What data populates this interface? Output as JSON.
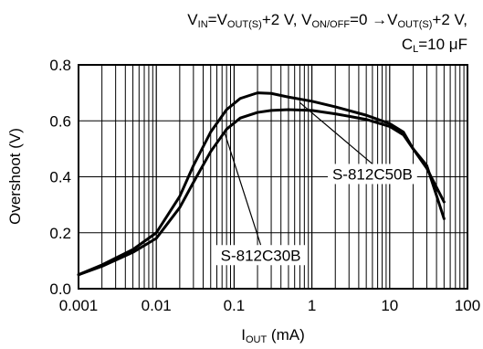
{
  "chart_data": {
    "type": "line",
    "title": "",
    "subtitle_line1": {
      "v_in": "V",
      "v_in_sub": "IN",
      "eq1": "=V",
      "vout1_sub": "OUT(S)",
      "plus1": "+2 V, V",
      "onoff_sub": "ON/OFF",
      "eq2": "=0 →V",
      "vout2_sub": "OUT(S)",
      "plus2": "+2 V,"
    },
    "subtitle_line2": {
      "c": "C",
      "c_sub": "L",
      "rest": "=10 μF"
    },
    "xlabel": {
      "i": "I",
      "i_sub": "OUT",
      "unit": " (mA)"
    },
    "ylabel": "Overshoot (V)",
    "x_scale": "log",
    "xlim": [
      0.001,
      100
    ],
    "ylim": [
      0.0,
      0.8
    ],
    "x_ticks": [
      0.001,
      0.01,
      0.1,
      1,
      10,
      100
    ],
    "x_tick_labels": [
      "0.001",
      "0.01",
      "0.1",
      "1",
      "10",
      "100"
    ],
    "y_ticks": [
      0.0,
      0.2,
      0.4,
      0.6,
      0.8
    ],
    "y_tick_labels": [
      "0.0",
      "0.2",
      "0.4",
      "0.6",
      "0.8"
    ],
    "grid": true,
    "legend": "none",
    "series": [
      {
        "name": "S-812C50B",
        "points": [
          [
            0.001,
            0.05
          ],
          [
            0.002,
            0.085
          ],
          [
            0.005,
            0.14
          ],
          [
            0.01,
            0.2
          ],
          [
            0.02,
            0.33
          ],
          [
            0.03,
            0.44
          ],
          [
            0.05,
            0.56
          ],
          [
            0.08,
            0.64
          ],
          [
            0.12,
            0.68
          ],
          [
            0.2,
            0.7
          ],
          [
            0.3,
            0.698
          ],
          [
            0.5,
            0.685
          ],
          [
            1,
            0.67
          ],
          [
            2,
            0.65
          ],
          [
            5,
            0.62
          ],
          [
            10,
            0.59
          ],
          [
            15,
            0.56
          ],
          [
            20,
            0.5
          ],
          [
            30,
            0.43
          ],
          [
            50,
            0.31
          ]
        ]
      },
      {
        "name": "S-812C30B",
        "points": [
          [
            0.001,
            0.05
          ],
          [
            0.002,
            0.08
          ],
          [
            0.005,
            0.13
          ],
          [
            0.01,
            0.18
          ],
          [
            0.02,
            0.29
          ],
          [
            0.03,
            0.38
          ],
          [
            0.05,
            0.49
          ],
          [
            0.08,
            0.57
          ],
          [
            0.12,
            0.61
          ],
          [
            0.2,
            0.63
          ],
          [
            0.3,
            0.637
          ],
          [
            0.5,
            0.64
          ],
          [
            1,
            0.637
          ],
          [
            2,
            0.625
          ],
          [
            5,
            0.605
          ],
          [
            10,
            0.58
          ],
          [
            15,
            0.55
          ],
          [
            20,
            0.5
          ],
          [
            30,
            0.44
          ],
          [
            50,
            0.25
          ]
        ]
      }
    ],
    "annotations": [
      {
        "text": "S-812C50B",
        "series": "S-812C50B",
        "target": [
          0.7,
          0.665
        ],
        "label_at": [
          6,
          0.41
        ]
      },
      {
        "text": "S-812C30B",
        "series": "S-812C30B",
        "target": [
          0.075,
          0.56
        ],
        "label_at": [
          0.22,
          0.12
        ]
      }
    ]
  }
}
